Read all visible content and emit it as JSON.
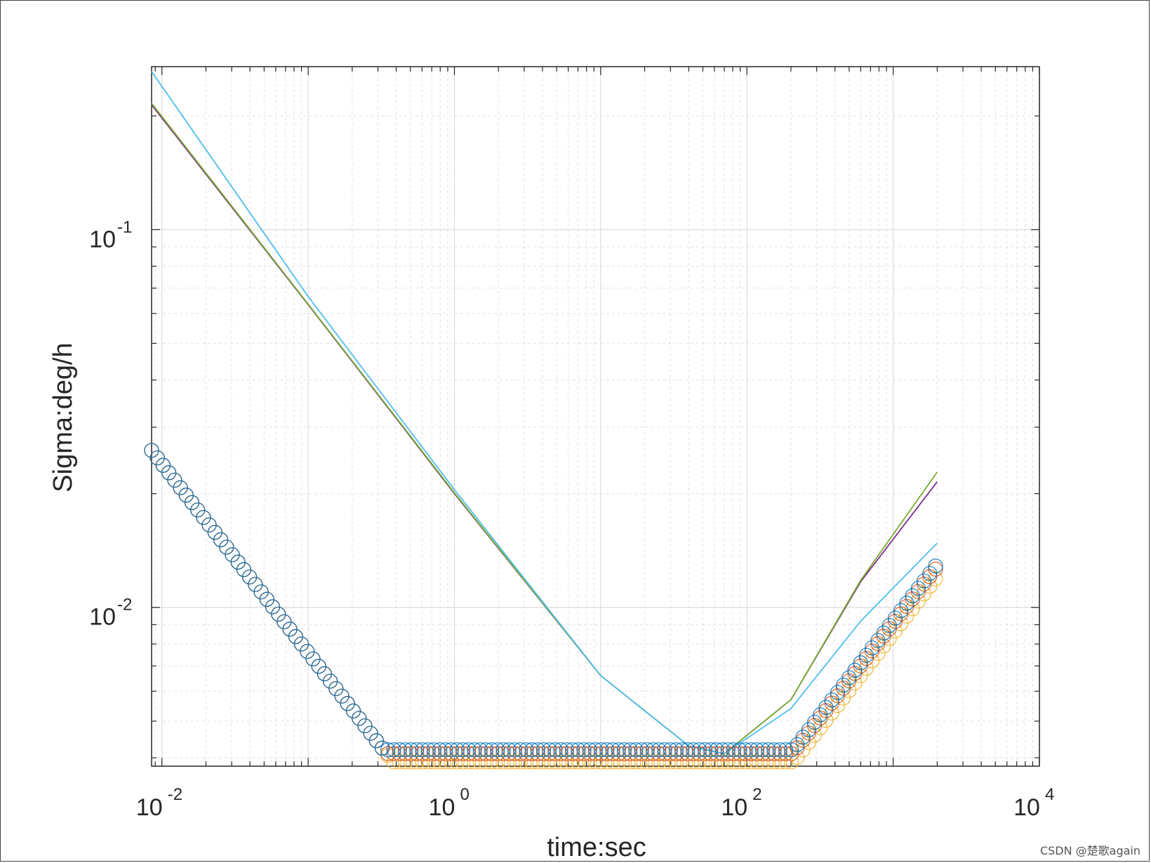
{
  "watermark": "CSDN @楚歌again",
  "chart_data": {
    "type": "scatter",
    "title": "",
    "xlabel": "time:sec",
    "ylabel": "Sigma:deg/h",
    "xscale": "log",
    "yscale": "log",
    "xlim": [
      0.0085,
      10000
    ],
    "ylim": [
      0.0038,
      0.27
    ],
    "grid": true,
    "minor_grid": true,
    "legend": "none",
    "x_ticks": [
      {
        "value": 0.01,
        "base": "10",
        "exp": "-2"
      },
      {
        "value": 1,
        "base": "10",
        "exp": "0"
      },
      {
        "value": 100,
        "base": "10",
        "exp": "2"
      },
      {
        "value": 10000,
        "base": "10",
        "exp": "4"
      }
    ],
    "y_ticks": [
      {
        "value": 0.1,
        "base": "10",
        "exp": "-1"
      },
      {
        "value": 0.01,
        "base": "10",
        "exp": "-2"
      }
    ],
    "colors": {
      "blue": "#0072BD",
      "orange": "#D95319",
      "yellow": "#EDB120",
      "purple": "#7E2F8E",
      "green": "#77AC30",
      "cyan": "#4DBEEE"
    },
    "series": [
      {
        "marker": "circle",
        "color": "#0072BD",
        "noise_coef": 0.0024,
        "drift_coef": 0.00053,
        "min_y": 0.0042,
        "end_x": 2000,
        "end_y": 0.0205
      },
      {
        "marker": "circle",
        "color": "#D95319",
        "noise_coef": 0.0024,
        "drift_coef": 0.00052,
        "min_y": 0.0041,
        "end_x": 2000,
        "end_y": 0.022
      },
      {
        "marker": "circle",
        "color": "#EDB120",
        "noise_coef": 0.0024,
        "drift_coef": 0.00049,
        "min_y": 0.0039,
        "end_x": 2000,
        "end_y": 0.0115
      }
    ],
    "fit_lines": [
      {
        "color": "#7E2F8E",
        "style": "solid",
        "points": [
          [
            0.0085,
            0.214
          ],
          [
            0.1,
            0.0633
          ],
          [
            1,
            0.02
          ],
          [
            10,
            0.0066
          ],
          [
            40,
            0.0043
          ],
          [
            70,
            0.0041
          ],
          [
            200,
            0.0057
          ],
          [
            600,
            0.0117
          ],
          [
            2000,
            0.0215
          ]
        ]
      },
      {
        "color": "#77AC30",
        "style": "solid",
        "points": [
          [
            0.0085,
            0.216
          ],
          [
            0.1,
            0.0635
          ],
          [
            1,
            0.0201
          ],
          [
            10,
            0.0066
          ],
          [
            40,
            0.0043
          ],
          [
            70,
            0.0041
          ],
          [
            200,
            0.0057
          ],
          [
            600,
            0.0118
          ],
          [
            2000,
            0.0228
          ]
        ]
      },
      {
        "color": "#4DBEEE",
        "style": "solid",
        "points": [
          [
            0.0085,
            0.262
          ],
          [
            0.1,
            0.0665
          ],
          [
            1,
            0.0205
          ],
          [
            10,
            0.0066
          ],
          [
            40,
            0.0043
          ],
          [
            70,
            0.0041
          ],
          [
            200,
            0.0054
          ],
          [
            600,
            0.0092
          ],
          [
            2000,
            0.0148
          ]
        ]
      }
    ]
  }
}
